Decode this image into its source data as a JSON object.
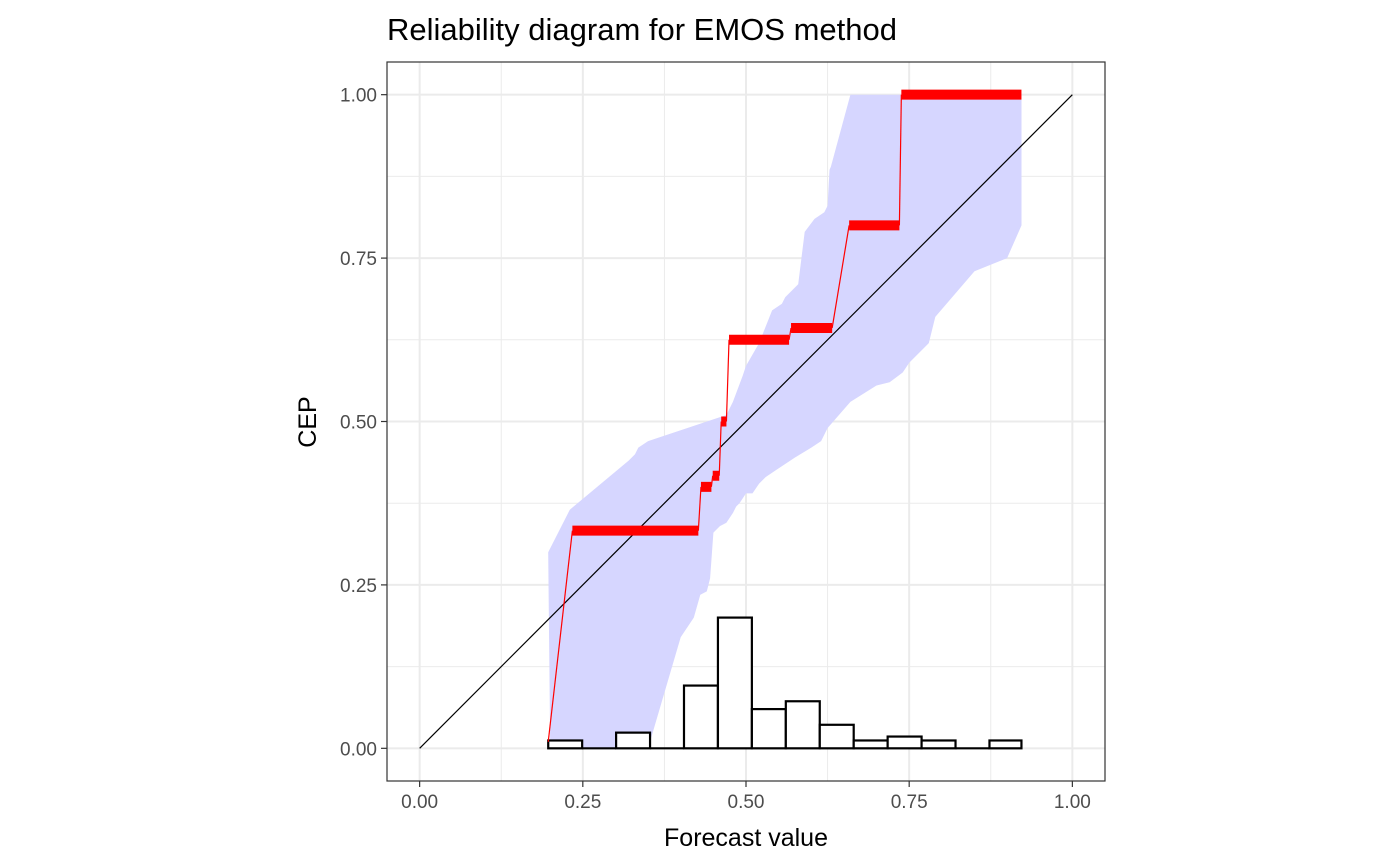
{
  "chart_data": {
    "type": "reliability-diagram",
    "title": "Reliability diagram for EMOS method",
    "xlabel": "Forecast value",
    "ylabel": "CEP",
    "xlim": [
      -0.05,
      1.05
    ],
    "ylim": [
      -0.05,
      1.05
    ],
    "x_ticks": [
      "0.00",
      "0.25",
      "0.50",
      "0.75",
      "1.00"
    ],
    "y_ticks": [
      "0.00",
      "0.25",
      "0.50",
      "0.75",
      "1.00"
    ],
    "grid": true,
    "legend": "none",
    "colors": {
      "cep": "#ff0000",
      "band": "#d6d6ff",
      "diagonal": "#000000",
      "histogram_fill": "#ffffff",
      "histogram_edge": "#000000"
    },
    "diagonal": [
      [
        0,
        0
      ],
      [
        1,
        1
      ]
    ],
    "cep_steps": [
      {
        "x0": 0.197,
        "x1": 0.234,
        "y0": 0.01,
        "y1": 0.333
      },
      {
        "x0": 0.234,
        "x1": 0.427,
        "y0": 0.333,
        "y1": 0.333
      },
      {
        "x0": 0.427,
        "x1": 0.431,
        "y0": 0.333,
        "y1": 0.4
      },
      {
        "x0": 0.431,
        "x1": 0.447,
        "y0": 0.4,
        "y1": 0.4
      },
      {
        "x0": 0.447,
        "x1": 0.449,
        "y0": 0.4,
        "y1": 0.417
      },
      {
        "x0": 0.449,
        "x1": 0.459,
        "y0": 0.417,
        "y1": 0.417
      },
      {
        "x0": 0.459,
        "x1": 0.462,
        "y0": 0.417,
        "y1": 0.5
      },
      {
        "x0": 0.462,
        "x1": 0.47,
        "y0": 0.5,
        "y1": 0.5
      },
      {
        "x0": 0.47,
        "x1": 0.474,
        "y0": 0.5,
        "y1": 0.625
      },
      {
        "x0": 0.474,
        "x1": 0.566,
        "y0": 0.625,
        "y1": 0.625
      },
      {
        "x0": 0.566,
        "x1": 0.569,
        "y0": 0.625,
        "y1": 0.643
      },
      {
        "x0": 0.569,
        "x1": 0.632,
        "y0": 0.643,
        "y1": 0.643
      },
      {
        "x0": 0.632,
        "x1": 0.658,
        "y0": 0.643,
        "y1": 0.8
      },
      {
        "x0": 0.658,
        "x1": 0.735,
        "y0": 0.8,
        "y1": 0.8
      },
      {
        "x0": 0.735,
        "x1": 0.738,
        "y0": 0.8,
        "y1": 1.0
      },
      {
        "x0": 0.738,
        "x1": 0.922,
        "y0": 1.0,
        "y1": 1.0
      }
    ],
    "band_upper": [
      [
        0.197,
        0.3
      ],
      [
        0.23,
        0.365
      ],
      [
        0.32,
        0.44
      ],
      [
        0.33,
        0.45
      ],
      [
        0.335,
        0.46
      ],
      [
        0.35,
        0.47
      ],
      [
        0.47,
        0.51
      ],
      [
        0.48,
        0.53
      ],
      [
        0.495,
        0.57
      ],
      [
        0.5,
        0.585
      ],
      [
        0.52,
        0.62
      ],
      [
        0.53,
        0.645
      ],
      [
        0.54,
        0.67
      ],
      [
        0.555,
        0.68
      ],
      [
        0.56,
        0.69
      ],
      [
        0.57,
        0.7
      ],
      [
        0.58,
        0.71
      ],
      [
        0.59,
        0.79
      ],
      [
        0.605,
        0.81
      ],
      [
        0.62,
        0.82
      ],
      [
        0.625,
        0.83
      ],
      [
        0.628,
        0.885
      ],
      [
        0.63,
        0.89
      ],
      [
        0.66,
        1.0
      ],
      [
        0.922,
        1.0
      ]
    ],
    "band_lower": [
      [
        0.922,
        0.8
      ],
      [
        0.9,
        0.75
      ],
      [
        0.85,
        0.73
      ],
      [
        0.79,
        0.66
      ],
      [
        0.78,
        0.62
      ],
      [
        0.75,
        0.59
      ],
      [
        0.74,
        0.575
      ],
      [
        0.72,
        0.56
      ],
      [
        0.7,
        0.555
      ],
      [
        0.66,
        0.53
      ],
      [
        0.625,
        0.49
      ],
      [
        0.615,
        0.47
      ],
      [
        0.6,
        0.46
      ],
      [
        0.575,
        0.445
      ],
      [
        0.56,
        0.435
      ],
      [
        0.545,
        0.425
      ],
      [
        0.53,
        0.415
      ],
      [
        0.52,
        0.405
      ],
      [
        0.51,
        0.39
      ],
      [
        0.5,
        0.39
      ],
      [
        0.49,
        0.375
      ],
      [
        0.485,
        0.37
      ],
      [
        0.48,
        0.36
      ],
      [
        0.47,
        0.345
      ],
      [
        0.46,
        0.34
      ],
      [
        0.45,
        0.33
      ],
      [
        0.445,
        0.26
      ],
      [
        0.44,
        0.24
      ],
      [
        0.43,
        0.235
      ],
      [
        0.42,
        0.2
      ],
      [
        0.4,
        0.17
      ],
      [
        0.35,
        0.0
      ],
      [
        0.2,
        0.0
      ]
    ],
    "histogram": {
      "bin_edges": [
        0.197,
        0.249,
        0.301,
        0.353,
        0.405,
        0.457,
        0.509,
        0.561,
        0.613,
        0.665,
        0.717,
        0.769,
        0.821,
        0.873,
        0.922
      ],
      "values": [
        0.012,
        0.0,
        0.024,
        0.0,
        0.096,
        0.2,
        0.06,
        0.072,
        0.036,
        0.012,
        0.018,
        0.012,
        0.0,
        0.012
      ]
    }
  }
}
